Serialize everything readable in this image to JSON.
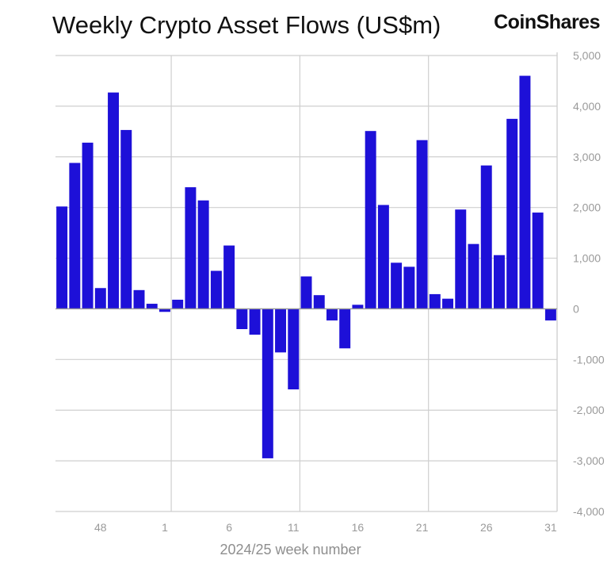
{
  "title": "Weekly Crypto Asset Flows (US$m)",
  "brand": "CoinShares",
  "colors": {
    "bar": "#1d10d8",
    "grid": "#cfcfcf",
    "zero_line": "#9a9a9a",
    "text": "#9a9a9a"
  },
  "chart_data": {
    "type": "bar",
    "xlabel": "2024/25 week number",
    "ylabel": "",
    "ylim": [
      -4000,
      5000
    ],
    "yticks": [
      5000,
      4000,
      3000,
      2000,
      1000,
      0,
      -1000,
      -2000,
      -3000,
      -4000
    ],
    "ytick_labels": [
      "5,000",
      "4,000",
      "3,000",
      "2,000",
      "1,000",
      "0",
      "-1,000",
      "-2,000",
      "-3,000",
      "-4,000"
    ],
    "xtick_labels": [
      "48",
      "1",
      "6",
      "11",
      "16",
      "21",
      "26",
      "31"
    ],
    "xtick_positions": [
      4,
      9,
      14,
      19,
      24,
      29,
      34,
      39
    ],
    "vertical_grid_after": [
      8,
      18,
      28
    ],
    "grid": true,
    "categories": [
      "45",
      "46",
      "47",
      "48",
      "49",
      "50",
      "51",
      "52",
      "1",
      "2",
      "3",
      "4",
      "5",
      "6",
      "7",
      "8",
      "9",
      "10",
      "11",
      "12",
      "13",
      "14",
      "15",
      "16",
      "17",
      "18",
      "19",
      "20",
      "21",
      "22",
      "23",
      "24",
      "25",
      "26",
      "27",
      "28",
      "29",
      "30",
      "31"
    ],
    "values": [
      2020,
      2880,
      3280,
      410,
      4270,
      3530,
      370,
      100,
      -60,
      180,
      2400,
      2140,
      750,
      1250,
      -400,
      -510,
      -2950,
      -860,
      -1590,
      640,
      270,
      -230,
      -780,
      80,
      3510,
      2050,
      910,
      830,
      3330,
      290,
      200,
      1960,
      1280,
      2830,
      1060,
      3750,
      4600,
      1900,
      -230
    ]
  }
}
